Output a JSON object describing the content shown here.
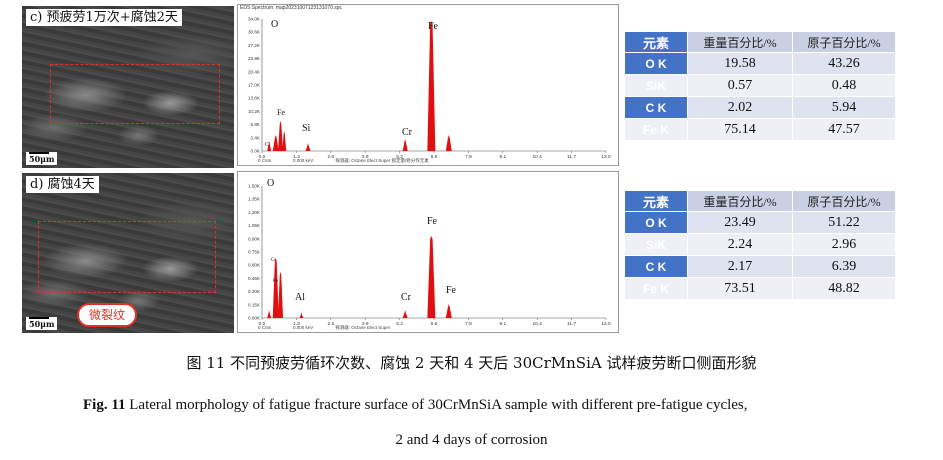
{
  "panel_c": {
    "label": "c) 预疲劳1万次+腐蚀2天",
    "scale": "50μm",
    "spectrum": {
      "header": "EDS Spectrum: map20231007123131070.spc",
      "y_ticks": [
        "34.0K",
        "30.6K",
        "27.2K",
        "23.8K",
        "20.4K",
        "17.0K",
        "13.6K",
        "10.2K",
        "6.8K",
        "3.4K",
        "0.0K"
      ],
      "x_ticks": [
        "0.0",
        "1.3",
        "2.6",
        "3.9",
        "5.2",
        "6.5",
        "7.8",
        "9.1",
        "10.4",
        "11.7",
        "13.0"
      ],
      "footer": [
        "0 Cnts",
        "0.000 keV",
        "探测器: Octane Elect Super  锁定量/修分作元素"
      ],
      "labels": [
        "O",
        "Fe",
        "Si",
        "Cr",
        "Fe",
        "C"
      ]
    },
    "table": {
      "headers": [
        "元素",
        "重量百分比/%",
        "原子百分比/%"
      ],
      "rows": [
        {
          "el": "O K",
          "wt": "19.58",
          "at": "43.26"
        },
        {
          "el": "SiK",
          "wt": "0.57",
          "at": "0.48"
        },
        {
          "el": "C K",
          "wt": "2.02",
          "at": "5.94"
        },
        {
          "el": "Fe K",
          "wt": "75.14",
          "at": "47.57"
        }
      ]
    }
  },
  "panel_d": {
    "label": "d) 腐蚀4天",
    "scale": "50μm",
    "crack_label": "微裂纹",
    "spectrum": {
      "y_ticks": [
        "1.50K",
        "1.35K",
        "1.20K",
        "1.05K",
        "0.90K",
        "0.75K",
        "0.60K",
        "0.45K",
        "0.30K",
        "0.15K",
        "0.00K"
      ],
      "x_ticks": [
        "0.0",
        "1.3",
        "2.6",
        "3.9",
        "5.2",
        "6.5",
        "7.8",
        "9.1",
        "10.4",
        "11.7",
        "13.0"
      ],
      "footer": [
        "0 Cnts",
        "0.000 keV",
        "探测器: Octane Elect Super"
      ],
      "labels": [
        "O",
        "Cr",
        "Fe",
        "Al",
        "Cr",
        "Fe",
        "Fe"
      ]
    },
    "table": {
      "headers": [
        "元素",
        "重量百分比/%",
        "原子百分比/%"
      ],
      "rows": [
        {
          "el": "O K",
          "wt": "23.49",
          "at": "51.22"
        },
        {
          "el": "SiK",
          "wt": "2.24",
          "at": "2.96"
        },
        {
          "el": "C K",
          "wt": "2.17",
          "at": "6.39"
        },
        {
          "el": "Fe K",
          "wt": "73.51",
          "at": "48.82"
        }
      ]
    }
  },
  "caption": {
    "cn": "图 11 不同预疲劳循环次数、腐蚀 2 天和 4 天后 30CrMnSiA 试样疲劳断口侧面形貌",
    "en_prefix": "Fig. 11",
    "en_line1": " Lateral morphology of fatigue fracture surface of 30CrMnSiA sample with different pre-fatigue cycles,",
    "en_line2": "2 and 4 days of corrosion"
  },
  "colors": {
    "peak": "#e01010",
    "table_key": "#4472c4",
    "roi": "#e0302a"
  }
}
